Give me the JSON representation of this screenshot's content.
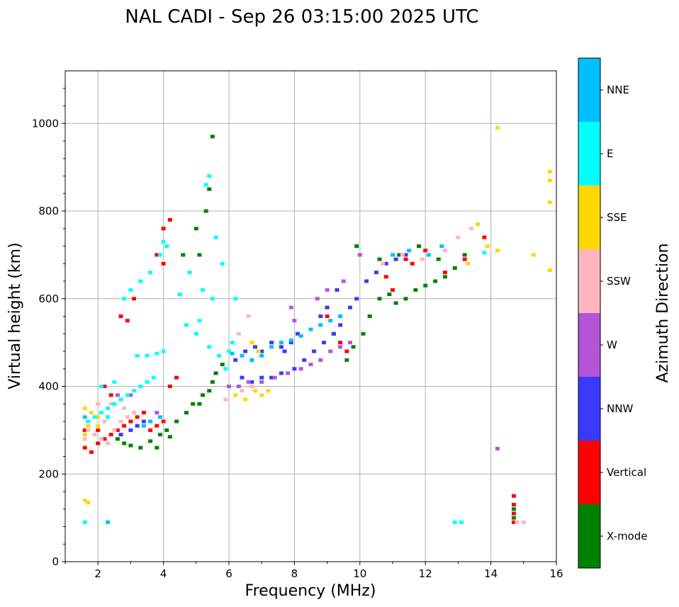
{
  "chart_data": {
    "type": "scatter",
    "title": "NAL CADI - Sep 26 03:15:00 2025 UTC",
    "xlabel": "Frequency (MHz)",
    "ylabel": "Virtual height (km)",
    "xlim": [
      1,
      16
    ],
    "ylim": [
      0,
      1120
    ],
    "xticks": [
      2,
      4,
      6,
      8,
      10,
      12,
      14,
      16
    ],
    "yticks": [
      0,
      200,
      400,
      600,
      800,
      1000
    ],
    "grid": true,
    "colorbar": {
      "label": "Azimuth Direction",
      "categories": [
        "X-mode",
        "Vertical",
        "NNW",
        "W",
        "SSW",
        "SSE",
        "E",
        "NNE"
      ],
      "colors": [
        "#008000",
        "#ff0000",
        "#3a3aff",
        "#b455d6",
        "#ffb6c1",
        "#ffd700",
        "#00ffff",
        "#00bfff"
      ]
    },
    "series": [
      {
        "name": "X-mode",
        "points": [
          [
            2.6,
            280
          ],
          [
            2.8,
            270
          ],
          [
            3.0,
            265
          ],
          [
            3.3,
            260
          ],
          [
            3.6,
            275
          ],
          [
            3.9,
            290
          ],
          [
            4.1,
            300
          ],
          [
            4.4,
            320
          ],
          [
            4.7,
            340
          ],
          [
            4.9,
            360
          ],
          [
            5.2,
            380
          ],
          [
            5.5,
            410
          ],
          [
            5.6,
            430
          ],
          [
            5.8,
            450
          ],
          [
            4.6,
            700
          ],
          [
            5.0,
            760
          ],
          [
            5.3,
            800
          ],
          [
            5.5,
            970
          ],
          [
            9.6,
            460
          ],
          [
            9.8,
            490
          ],
          [
            10.1,
            520
          ],
          [
            10.3,
            560
          ],
          [
            10.6,
            600
          ],
          [
            10.9,
            610
          ],
          [
            11.1,
            590
          ],
          [
            11.4,
            600
          ],
          [
            11.7,
            620
          ],
          [
            12.0,
            630
          ],
          [
            12.3,
            640
          ],
          [
            12.6,
            650
          ],
          [
            12.9,
            670
          ],
          [
            13.2,
            700
          ],
          [
            11.2,
            700
          ],
          [
            11.8,
            720
          ],
          [
            12.4,
            690
          ],
          [
            9.9,
            720
          ],
          [
            10.6,
            690
          ],
          [
            14.7,
            120
          ],
          [
            14.7,
            100
          ],
          [
            3.8,
            260
          ],
          [
            4.2,
            285
          ],
          [
            5.1,
            360
          ],
          [
            5.4,
            390
          ],
          [
            5.1,
            700
          ],
          [
            5.4,
            850
          ]
        ]
      },
      {
        "name": "Vertical",
        "points": [
          [
            1.6,
            260
          ],
          [
            1.8,
            250
          ],
          [
            2.0,
            270
          ],
          [
            2.2,
            280
          ],
          [
            2.4,
            290
          ],
          [
            2.6,
            300
          ],
          [
            2.8,
            310
          ],
          [
            3.0,
            320
          ],
          [
            3.2,
            330
          ],
          [
            3.4,
            340
          ],
          [
            3.6,
            300
          ],
          [
            3.8,
            310
          ],
          [
            4.0,
            320
          ],
          [
            4.0,
            760
          ],
          [
            4.2,
            780
          ],
          [
            3.8,
            700
          ],
          [
            4.0,
            680
          ],
          [
            2.7,
            560
          ],
          [
            2.9,
            550
          ],
          [
            3.1,
            600
          ],
          [
            2.2,
            400
          ],
          [
            2.4,
            380
          ],
          [
            4.2,
            400
          ],
          [
            4.4,
            420
          ],
          [
            9.0,
            560
          ],
          [
            9.2,
            520
          ],
          [
            9.4,
            500
          ],
          [
            9.6,
            480
          ],
          [
            10.8,
            650
          ],
          [
            11.4,
            690
          ],
          [
            12.0,
            710
          ],
          [
            12.6,
            660
          ],
          [
            13.2,
            690
          ],
          [
            13.8,
            740
          ],
          [
            14.7,
            150
          ],
          [
            14.7,
            130
          ],
          [
            14.7,
            110
          ],
          [
            14.7,
            90
          ],
          [
            11.0,
            620
          ],
          [
            11.6,
            680
          ],
          [
            1.6,
            300
          ],
          [
            2.0,
            300
          ]
        ]
      },
      {
        "name": "NNW",
        "points": [
          [
            6.2,
            460
          ],
          [
            6.5,
            480
          ],
          [
            6.8,
            490
          ],
          [
            7.0,
            480
          ],
          [
            7.3,
            500
          ],
          [
            7.6,
            490
          ],
          [
            7.9,
            500
          ],
          [
            8.1,
            520
          ],
          [
            6.7,
            410
          ],
          [
            7.0,
            420
          ],
          [
            7.3,
            420
          ],
          [
            7.6,
            430
          ],
          [
            8.0,
            440
          ],
          [
            8.3,
            460
          ],
          [
            8.6,
            480
          ],
          [
            8.9,
            500
          ],
          [
            9.2,
            520
          ],
          [
            9.4,
            540
          ],
          [
            9.7,
            580
          ],
          [
            9.9,
            600
          ],
          [
            10.2,
            640
          ],
          [
            10.5,
            660
          ],
          [
            10.8,
            680
          ],
          [
            11.1,
            690
          ],
          [
            11.4,
            700
          ],
          [
            9.0,
            580
          ],
          [
            9.3,
            620
          ],
          [
            8.8,
            560
          ],
          [
            6.4,
            420
          ],
          [
            3.0,
            300
          ],
          [
            3.2,
            310
          ],
          [
            3.4,
            320
          ],
          [
            2.7,
            290
          ],
          [
            7.7,
            480
          ]
        ]
      },
      {
        "name": "W",
        "points": [
          [
            6.0,
            400
          ],
          [
            6.3,
            400
          ],
          [
            6.6,
            410
          ],
          [
            7.0,
            410
          ],
          [
            7.4,
            420
          ],
          [
            7.8,
            430
          ],
          [
            8.2,
            440
          ],
          [
            8.5,
            450
          ],
          [
            8.8,
            460
          ],
          [
            9.1,
            480
          ],
          [
            9.4,
            490
          ],
          [
            9.7,
            500
          ],
          [
            8.7,
            600
          ],
          [
            9.0,
            620
          ],
          [
            9.5,
            640
          ],
          [
            10.0,
            700
          ],
          [
            8.0,
            550
          ],
          [
            7.9,
            580
          ],
          [
            2.6,
            380
          ],
          [
            3.0,
            380
          ],
          [
            14.2,
            258
          ],
          [
            3.8,
            340
          ]
        ]
      },
      {
        "name": "SSW",
        "points": [
          [
            1.7,
            300
          ],
          [
            1.9,
            290
          ],
          [
            2.1,
            280
          ],
          [
            2.3,
            270
          ],
          [
            2.5,
            300
          ],
          [
            2.7,
            320
          ],
          [
            2.9,
            330
          ],
          [
            3.1,
            340
          ],
          [
            2.0,
            360
          ],
          [
            2.4,
            360
          ],
          [
            2.8,
            350
          ],
          [
            5.9,
            370
          ],
          [
            6.4,
            390
          ],
          [
            6.7,
            400
          ],
          [
            6.3,
            520
          ],
          [
            6.6,
            560
          ],
          [
            10.7,
            680
          ],
          [
            11.3,
            700
          ],
          [
            11.9,
            690
          ],
          [
            12.6,
            710
          ],
          [
            13.0,
            740
          ],
          [
            13.4,
            760
          ],
          [
            14.8,
            90
          ],
          [
            15.0,
            90
          ],
          [
            1.6,
            280
          ],
          [
            2.2,
            320
          ]
        ]
      },
      {
        "name": "SSE",
        "points": [
          [
            1.6,
            350
          ],
          [
            1.8,
            340
          ],
          [
            2.0,
            330
          ],
          [
            1.7,
            310
          ],
          [
            1.6,
            140
          ],
          [
            1.7,
            135
          ],
          [
            6.2,
            380
          ],
          [
            6.5,
            370
          ],
          [
            6.8,
            390
          ],
          [
            7.0,
            380
          ],
          [
            7.2,
            390
          ],
          [
            6.7,
            500
          ],
          [
            6.9,
            480
          ],
          [
            13.3,
            680
          ],
          [
            13.6,
            770
          ],
          [
            13.9,
            720
          ],
          [
            14.2,
            710
          ],
          [
            14.2,
            990
          ],
          [
            15.3,
            700
          ],
          [
            15.8,
            890
          ],
          [
            15.8,
            870
          ],
          [
            15.8,
            820
          ],
          [
            15.8,
            665
          ],
          [
            1.6,
            290
          ],
          [
            2.0,
            310
          ]
        ]
      },
      {
        "name": "E",
        "points": [
          [
            1.7,
            320
          ],
          [
            1.9,
            330
          ],
          [
            2.1,
            340
          ],
          [
            2.3,
            350
          ],
          [
            2.5,
            360
          ],
          [
            2.7,
            370
          ],
          [
            2.9,
            380
          ],
          [
            3.1,
            390
          ],
          [
            3.3,
            400
          ],
          [
            3.5,
            410
          ],
          [
            3.7,
            420
          ],
          [
            3.2,
            470
          ],
          [
            3.5,
            470
          ],
          [
            3.8,
            475
          ],
          [
            4.0,
            480
          ],
          [
            2.8,
            600
          ],
          [
            3.0,
            620
          ],
          [
            3.3,
            640
          ],
          [
            3.6,
            660
          ],
          [
            3.9,
            700
          ],
          [
            4.1,
            720
          ],
          [
            4.0,
            730
          ],
          [
            4.8,
            660
          ],
          [
            5.2,
            620
          ],
          [
            5.5,
            600
          ],
          [
            4.7,
            540
          ],
          [
            5.0,
            520
          ],
          [
            5.4,
            490
          ],
          [
            5.7,
            470
          ],
          [
            5.9,
            440
          ],
          [
            6.0,
            480
          ],
          [
            6.1,
            500
          ],
          [
            6.2,
            600
          ],
          [
            5.8,
            680
          ],
          [
            5.6,
            740
          ],
          [
            5.4,
            880
          ],
          [
            5.3,
            860
          ],
          [
            2.5,
            410
          ],
          [
            2.3,
            330
          ],
          [
            1.6,
            90
          ],
          [
            2.1,
            400
          ],
          [
            12.9,
            90
          ],
          [
            13.1,
            90
          ],
          [
            13.8,
            705
          ],
          [
            4.5,
            610
          ],
          [
            5.1,
            550
          ]
        ]
      },
      {
        "name": "NNE",
        "points": [
          [
            6.1,
            475
          ],
          [
            6.4,
            470
          ],
          [
            6.7,
            460
          ],
          [
            7.0,
            470
          ],
          [
            7.3,
            490
          ],
          [
            7.6,
            500
          ],
          [
            7.9,
            505
          ],
          [
            8.2,
            515
          ],
          [
            8.5,
            530
          ],
          [
            8.8,
            540
          ],
          [
            9.1,
            550
          ],
          [
            9.4,
            560
          ],
          [
            11.0,
            700
          ],
          [
            11.5,
            710
          ],
          [
            12.1,
            700
          ],
          [
            12.5,
            720
          ],
          [
            2.3,
            90
          ],
          [
            3.4,
            310
          ],
          [
            3.6,
            320
          ],
          [
            3.9,
            330
          ],
          [
            1.6,
            330
          ]
        ]
      }
    ]
  }
}
